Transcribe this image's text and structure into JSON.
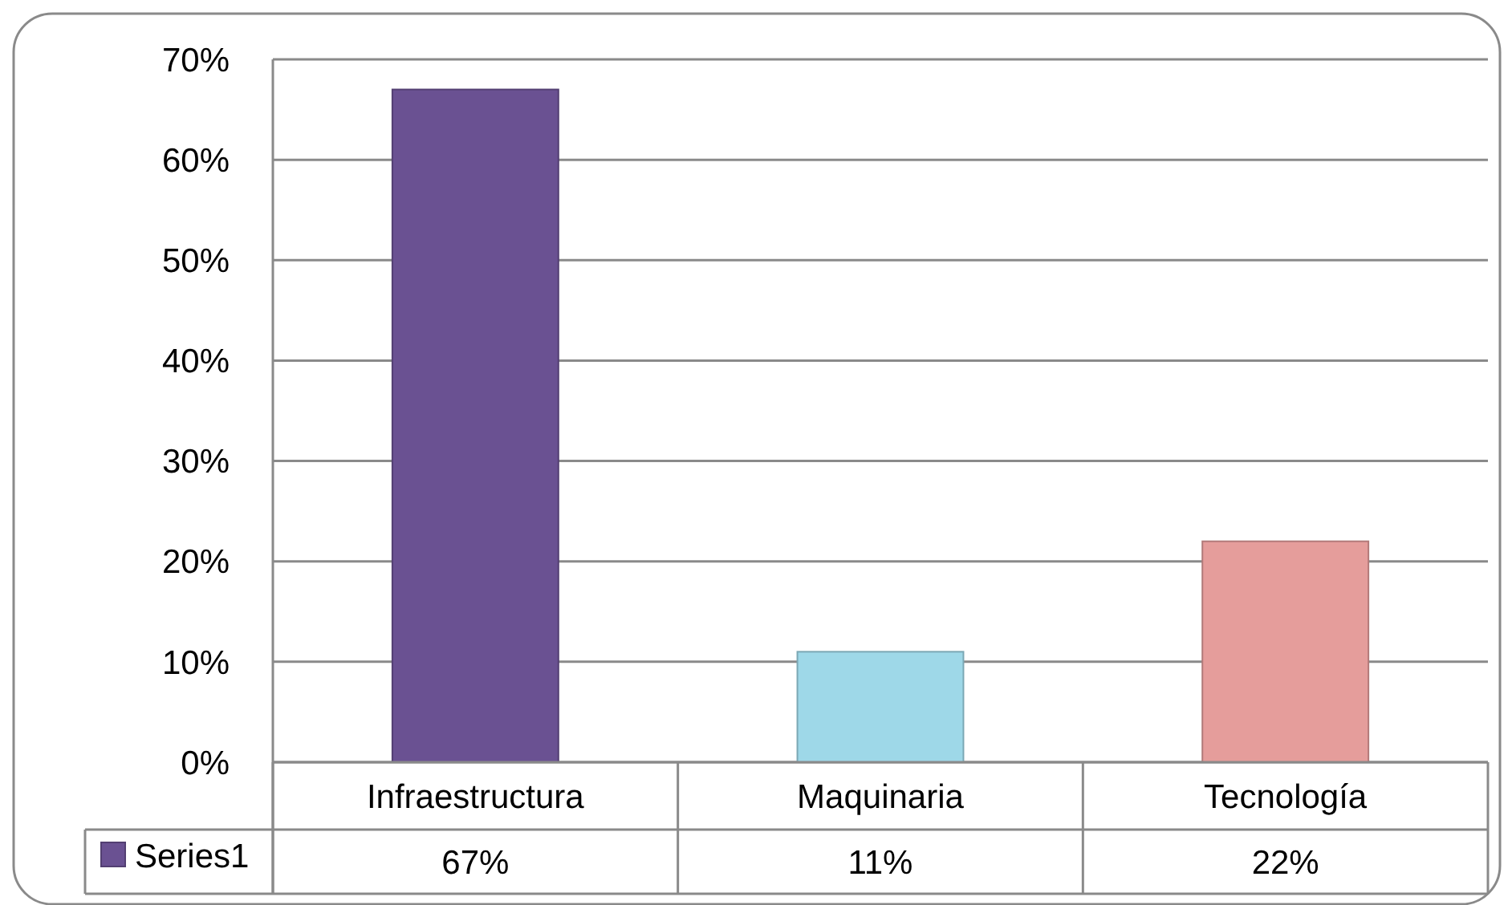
{
  "chart_data": {
    "type": "bar",
    "categories": [
      "Infraestructura",
      "Maquinaria",
      "Tecnología"
    ],
    "series": [
      {
        "name": "Series1",
        "color": "#6a5192",
        "colors": [
          "#6a5192",
          "#9ed8e8",
          "#e59d9b"
        ],
        "values": [
          67,
          11,
          22
        ],
        "value_labels": [
          "67%",
          "11%",
          "22%"
        ]
      }
    ],
    "ylim": [
      0,
      70
    ],
    "yticks": [
      {
        "value": 0,
        "label": "0%"
      },
      {
        "value": 10,
        "label": "10%"
      },
      {
        "value": 20,
        "label": "20%"
      },
      {
        "value": 30,
        "label": "30%"
      },
      {
        "value": 40,
        "label": "40%"
      },
      {
        "value": 50,
        "label": "50%"
      },
      {
        "value": 60,
        "label": "60%"
      },
      {
        "value": 70,
        "label": "70%"
      }
    ],
    "grid": "y",
    "legend": "bottom left"
  }
}
